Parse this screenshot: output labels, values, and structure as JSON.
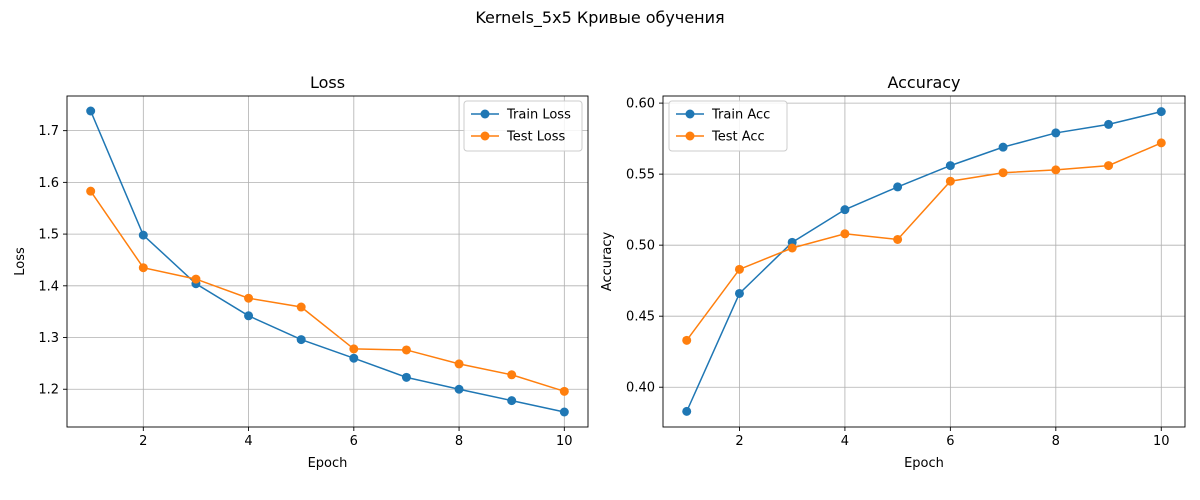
{
  "figure": {
    "suptitle": "Kernels_5x5 Кривые обучения"
  },
  "chart_data": [
    {
      "type": "line",
      "title": "Loss",
      "xlabel": "Epoch",
      "ylabel": "Loss",
      "x": [
        1,
        2,
        3,
        4,
        5,
        6,
        7,
        8,
        9,
        10
      ],
      "xticks": [
        2,
        4,
        6,
        8,
        10
      ],
      "yticks": [
        1.2,
        1.3,
        1.4,
        1.5,
        1.6,
        1.7
      ],
      "xlim": [
        0.55,
        10.45
      ],
      "ylim": [
        1.127,
        1.767
      ],
      "grid": true,
      "legend_position": "top-right",
      "series": [
        {
          "name": "Train Loss",
          "color": "#1f77b4",
          "values": [
            1.738,
            1.498,
            1.404,
            1.342,
            1.296,
            1.26,
            1.223,
            1.2,
            1.178,
            1.156
          ]
        },
        {
          "name": "Test Loss",
          "color": "#ff7f0e",
          "values": [
            1.583,
            1.435,
            1.413,
            1.376,
            1.359,
            1.278,
            1.276,
            1.249,
            1.228,
            1.196
          ]
        }
      ]
    },
    {
      "type": "line",
      "title": "Accuracy",
      "xlabel": "Epoch",
      "ylabel": "Accuracy",
      "x": [
        1,
        2,
        3,
        4,
        5,
        6,
        7,
        8,
        9,
        10
      ],
      "xticks": [
        2,
        4,
        6,
        8,
        10
      ],
      "yticks": [
        0.4,
        0.45,
        0.5,
        0.55,
        0.6
      ],
      "ytick_labels": [
        "0.40",
        "0.45",
        "0.50",
        "0.55",
        "0.60"
      ],
      "xlim": [
        0.55,
        10.45
      ],
      "ylim": [
        0.372,
        0.605
      ],
      "grid": true,
      "legend_position": "top-left",
      "series": [
        {
          "name": "Train Acc",
          "color": "#1f77b4",
          "values": [
            0.383,
            0.466,
            0.502,
            0.525,
            0.541,
            0.556,
            0.569,
            0.579,
            0.585,
            0.594
          ]
        },
        {
          "name": "Test Acc",
          "color": "#ff7f0e",
          "values": [
            0.433,
            0.483,
            0.498,
            0.508,
            0.504,
            0.545,
            0.551,
            0.553,
            0.556,
            0.572
          ]
        }
      ]
    }
  ]
}
